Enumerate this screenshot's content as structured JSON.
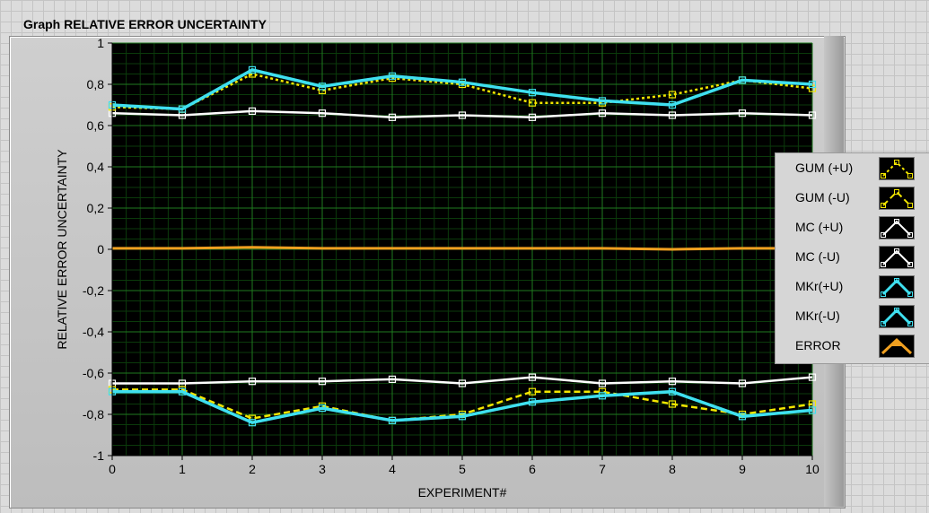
{
  "graph_title": "Graph RELATIVE ERROR UNCERTAINTY",
  "chart_data": {
    "type": "line",
    "title": "Graph RELATIVE ERROR UNCERTAINTY",
    "xlabel": "EXPERIMENT#",
    "ylabel": "RELATIVE ERROR UNCERTAINTY",
    "xlim": [
      0,
      10
    ],
    "ylim": [
      -1,
      1
    ],
    "x_ticks": [
      "0",
      "1",
      "2",
      "3",
      "4",
      "5",
      "6",
      "7",
      "8",
      "9",
      "10"
    ],
    "y_ticks": [
      "1",
      "0,8",
      "0,6",
      "0,4",
      "0,2",
      "0",
      "-0,2",
      "-0,4",
      "-0,6",
      "-0,8",
      "-1"
    ],
    "grid": true,
    "legend_position": "right",
    "x": [
      0,
      1,
      2,
      3,
      4,
      5,
      6,
      7,
      8,
      9,
      10
    ],
    "series": [
      {
        "name": "GUM (+U)",
        "color": "#f2e600",
        "style": "dotted",
        "marker": "square",
        "values": [
          0.69,
          0.68,
          0.85,
          0.77,
          0.83,
          0.8,
          0.71,
          0.71,
          0.75,
          0.82,
          0.78
        ]
      },
      {
        "name": "GUM (-U)",
        "color": "#f2e600",
        "style": "dashed",
        "marker": "square",
        "values": [
          -0.68,
          -0.68,
          -0.82,
          -0.76,
          -0.83,
          -0.8,
          -0.69,
          -0.69,
          -0.75,
          -0.8,
          -0.75
        ]
      },
      {
        "name": "MC (+U)",
        "color": "#ffffff",
        "style": "solid",
        "marker": "square",
        "values": [
          0.66,
          0.65,
          0.67,
          0.66,
          0.64,
          0.65,
          0.64,
          0.66,
          0.65,
          0.66,
          0.65
        ]
      },
      {
        "name": "MC (-U)",
        "color": "#ffffff",
        "style": "solid",
        "marker": "square",
        "values": [
          -0.65,
          -0.65,
          -0.64,
          -0.64,
          -0.63,
          -0.65,
          -0.62,
          -0.65,
          -0.64,
          -0.65,
          -0.62
        ]
      },
      {
        "name": "MKr(+U)",
        "color": "#3fe0f0",
        "style": "solid",
        "marker": "square",
        "values": [
          0.7,
          0.68,
          0.87,
          0.79,
          0.84,
          0.81,
          0.76,
          0.72,
          0.7,
          0.82,
          0.8
        ]
      },
      {
        "name": "MKr(-U)",
        "color": "#3fe0f0",
        "style": "solid",
        "marker": "square",
        "values": [
          -0.69,
          -0.69,
          -0.84,
          -0.77,
          -0.83,
          -0.81,
          -0.74,
          -0.71,
          -0.69,
          -0.81,
          -0.78
        ]
      },
      {
        "name": "ERROR",
        "color": "#f0a020",
        "style": "solid",
        "marker": "none",
        "values": [
          0.005,
          0.005,
          0.01,
          0.005,
          0.005,
          0.005,
          0.005,
          0.005,
          0.0,
          0.005,
          0.005
        ]
      }
    ]
  }
}
